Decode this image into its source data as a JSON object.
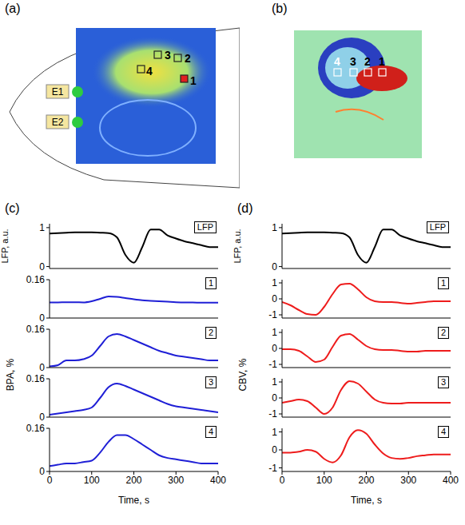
{
  "panel_letters": [
    "(a)",
    "(b)",
    "(c)",
    "(d)"
  ],
  "images": {
    "a": {
      "electrodes": [
        "E1",
        "E2"
      ],
      "rois": [
        "1",
        "2",
        "3",
        "4"
      ]
    },
    "b": {
      "rois": [
        "4",
        "3",
        "2",
        "1"
      ]
    }
  },
  "shared_ylabels": [
    "BPA, %",
    "CBV, %"
  ],
  "chart_data": [
    {
      "type": "line",
      "title": "LFP",
      "ylabel": "LFP, a.u.",
      "color": "#000000",
      "x": [
        0,
        20,
        40,
        60,
        80,
        100,
        120,
        140,
        160,
        180,
        200,
        220,
        240,
        260,
        280,
        300,
        320,
        340,
        360,
        380,
        400
      ],
      "values": [
        0.85,
        0.86,
        0.87,
        0.88,
        0.88,
        0.88,
        0.87,
        0.86,
        0.75,
        0.3,
        0.1,
        0.5,
        0.95,
        0.95,
        0.8,
        0.72,
        0.65,
        0.6,
        0.55,
        0.5,
        0.5
      ],
      "xlim": [
        0,
        400
      ],
      "xticks": [
        0,
        100,
        200,
        300,
        400
      ],
      "ylim": [
        -0.05,
        1.1
      ],
      "yticks": [
        0,
        1
      ],
      "tick_labels": "y",
      "grid": false
    },
    {
      "type": "line",
      "title": "1",
      "color": "#1f1fd6",
      "x": [
        0,
        20,
        40,
        60,
        80,
        100,
        120,
        140,
        160,
        180,
        200,
        220,
        240,
        260,
        280,
        300,
        320,
        340,
        360,
        380,
        400
      ],
      "values": [
        0.065,
        0.065,
        0.066,
        0.066,
        0.065,
        0.07,
        0.08,
        0.09,
        0.088,
        0.083,
        0.078,
        0.074,
        0.072,
        0.07,
        0.068,
        0.066,
        0.065,
        0.065,
        0.064,
        0.064,
        0.064
      ],
      "xlim": [
        0,
        400
      ],
      "xticks": [
        0,
        100,
        200,
        300,
        400
      ],
      "ylim": [
        0,
        0.16
      ],
      "yticks": [
        0,
        0.16
      ],
      "tick_labels": "y",
      "grid": false
    },
    {
      "type": "line",
      "title": "2",
      "color": "#1f1fd6",
      "x": [
        0,
        20,
        40,
        60,
        80,
        100,
        120,
        140,
        160,
        180,
        200,
        220,
        240,
        260,
        280,
        300,
        320,
        340,
        360,
        380,
        400
      ],
      "values": [
        0.005,
        0.01,
        0.03,
        0.03,
        0.035,
        0.05,
        0.09,
        0.13,
        0.14,
        0.13,
        0.115,
        0.1,
        0.085,
        0.07,
        0.06,
        0.05,
        0.045,
        0.04,
        0.035,
        0.03,
        0.03
      ],
      "xlim": [
        0,
        400
      ],
      "xticks": [
        0,
        100,
        200,
        300,
        400
      ],
      "ylim": [
        0,
        0.16
      ],
      "yticks": [
        0,
        0.16
      ],
      "tick_labels": "y",
      "grid": false
    },
    {
      "type": "line",
      "title": "3",
      "color": "#1f1fd6",
      "x": [
        0,
        20,
        40,
        60,
        80,
        100,
        120,
        140,
        160,
        180,
        200,
        220,
        240,
        260,
        280,
        300,
        320,
        340,
        360,
        380,
        400
      ],
      "values": [
        0.01,
        0.015,
        0.02,
        0.025,
        0.03,
        0.04,
        0.08,
        0.125,
        0.14,
        0.13,
        0.115,
        0.1,
        0.085,
        0.07,
        0.055,
        0.045,
        0.04,
        0.035,
        0.03,
        0.025,
        0.02
      ],
      "xlim": [
        0,
        400
      ],
      "xticks": [
        0,
        100,
        200,
        300,
        400
      ],
      "ylim": [
        0,
        0.16
      ],
      "yticks": [
        0,
        0.16
      ],
      "tick_labels": "y",
      "grid": false
    },
    {
      "type": "line",
      "title": "4",
      "xlabel": "Time, s",
      "color": "#1f1fd6",
      "x": [
        0,
        20,
        40,
        60,
        80,
        100,
        120,
        140,
        160,
        180,
        200,
        220,
        240,
        260,
        280,
        300,
        320,
        340,
        360,
        380,
        400
      ],
      "values": [
        0.02,
        0.025,
        0.03,
        0.03,
        0.035,
        0.04,
        0.07,
        0.11,
        0.135,
        0.135,
        0.12,
        0.1,
        0.08,
        0.06,
        0.05,
        0.045,
        0.04,
        0.035,
        0.03,
        0.03,
        0.03
      ],
      "xlim": [
        0,
        400
      ],
      "xticks": [
        0,
        100,
        200,
        300,
        400
      ],
      "ylim": [
        0,
        0.16
      ],
      "yticks": [
        0,
        0.16
      ],
      "grid": false
    },
    {
      "type": "line",
      "title": "LFP",
      "ylabel": "LFP, a.u.",
      "color": "#000000",
      "x": [
        0,
        20,
        40,
        60,
        80,
        100,
        120,
        140,
        160,
        180,
        200,
        220,
        240,
        260,
        280,
        300,
        320,
        340,
        360,
        380,
        400
      ],
      "values": [
        0.85,
        0.86,
        0.87,
        0.88,
        0.88,
        0.88,
        0.87,
        0.86,
        0.75,
        0.3,
        0.1,
        0.5,
        0.95,
        0.95,
        0.8,
        0.72,
        0.65,
        0.6,
        0.55,
        0.5,
        0.5
      ],
      "xlim": [
        0,
        400
      ],
      "xticks": [
        0,
        100,
        200,
        300,
        400
      ],
      "ylim": [
        -0.05,
        1.1
      ],
      "yticks": [
        0,
        1
      ],
      "tick_labels": "y",
      "grid": false
    },
    {
      "type": "line",
      "title": "1",
      "color": "#ee1c1c",
      "x": [
        0,
        20,
        40,
        60,
        80,
        100,
        120,
        140,
        160,
        180,
        200,
        220,
        240,
        260,
        280,
        300,
        320,
        340,
        360,
        380,
        400
      ],
      "values": [
        -0.2,
        -0.4,
        -0.7,
        -0.95,
        -1.0,
        -0.5,
        0.3,
        0.9,
        0.95,
        0.6,
        0.1,
        -0.15,
        -0.2,
        -0.2,
        -0.25,
        -0.3,
        -0.25,
        -0.2,
        -0.15,
        -0.15,
        -0.15
      ],
      "xlim": [
        0,
        400
      ],
      "xticks": [
        0,
        100,
        200,
        300,
        400
      ],
      "ylim": [
        -1.2,
        1.2
      ],
      "yticks": [
        -1,
        0,
        1
      ],
      "tick_labels": "y",
      "grid": false
    },
    {
      "type": "line",
      "title": "2",
      "color": "#ee1c1c",
      "x": [
        0,
        20,
        40,
        60,
        80,
        100,
        120,
        140,
        160,
        180,
        200,
        220,
        240,
        260,
        280,
        300,
        320,
        340,
        360,
        380,
        400
      ],
      "values": [
        -0.05,
        -0.05,
        -0.15,
        -0.5,
        -0.85,
        -0.7,
        0.1,
        0.8,
        0.9,
        0.55,
        0.15,
        -0.05,
        -0.1,
        -0.1,
        -0.15,
        -0.2,
        -0.2,
        -0.15,
        -0.15,
        -0.15,
        -0.15
      ],
      "xlim": [
        0,
        400
      ],
      "xticks": [
        0,
        100,
        200,
        300,
        400
      ],
      "ylim": [
        -1.2,
        1.2
      ],
      "yticks": [
        -1,
        0,
        1
      ],
      "tick_labels": "y",
      "grid": false
    },
    {
      "type": "line",
      "title": "3",
      "color": "#ee1c1c",
      "x": [
        0,
        20,
        40,
        60,
        80,
        100,
        120,
        140,
        160,
        180,
        200,
        220,
        240,
        260,
        280,
        300,
        320,
        340,
        360,
        380,
        400
      ],
      "values": [
        -0.3,
        -0.2,
        -0.1,
        -0.2,
        -0.6,
        -1.0,
        -0.6,
        0.5,
        1.05,
        0.9,
        0.4,
        -0.1,
        -0.3,
        -0.35,
        -0.35,
        -0.3,
        -0.3,
        -0.3,
        -0.3,
        -0.3,
        -0.3
      ],
      "xlim": [
        0,
        400
      ],
      "xticks": [
        0,
        100,
        200,
        300,
        400
      ],
      "ylim": [
        -1.2,
        1.2
      ],
      "yticks": [
        -1,
        0,
        1
      ],
      "tick_labels": "y",
      "grid": false
    },
    {
      "type": "line",
      "title": "4",
      "xlabel": "Time, s",
      "color": "#ee1c1c",
      "x": [
        0,
        20,
        40,
        60,
        80,
        100,
        120,
        140,
        160,
        180,
        200,
        220,
        240,
        260,
        280,
        300,
        320,
        340,
        360,
        380,
        400
      ],
      "values": [
        -0.15,
        -0.15,
        -0.1,
        0,
        -0.1,
        -0.5,
        -0.7,
        -0.3,
        0.7,
        1.1,
        0.9,
        0.3,
        -0.2,
        -0.45,
        -0.5,
        -0.45,
        -0.35,
        -0.3,
        -0.25,
        -0.25,
        -0.25
      ],
      "xlim": [
        0,
        400
      ],
      "xticks": [
        0,
        100,
        200,
        300,
        400
      ],
      "ylim": [
        -1.2,
        1.2
      ],
      "yticks": [
        -1,
        0,
        1
      ],
      "grid": false
    }
  ]
}
